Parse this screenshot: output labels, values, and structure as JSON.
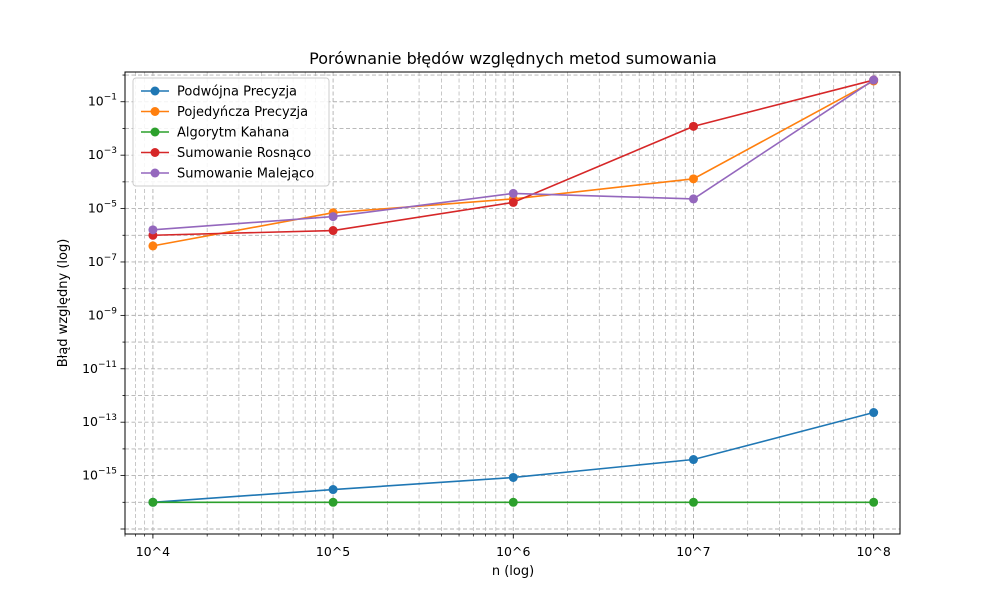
{
  "chart_data": {
    "type": "line",
    "title": "Porównanie błędów względnych metod sumowania",
    "xlabel": "n (log)",
    "ylabel": "Błąd względny (log)",
    "xscale": "log",
    "yscale": "log",
    "xlim": [
      7000,
      140000000
    ],
    "ylim": [
      6.5e-18,
      1.3
    ],
    "grid": true,
    "legend_position": "upper-left",
    "x": [
      10000,
      100000,
      1000000,
      10000000,
      100000000
    ],
    "x_tick_labels": [
      "10^4",
      "10^5",
      "10^6",
      "10^7",
      "10^8"
    ],
    "y_tick_labels": [
      {
        "base": "10",
        "exp": "−15",
        "value": 1e-15
      },
      {
        "base": "10",
        "exp": "−13",
        "value": 1e-13
      },
      {
        "base": "10",
        "exp": "−11",
        "value": 1e-11
      },
      {
        "base": "10",
        "exp": "−9",
        "value": 1e-09
      },
      {
        "base": "10",
        "exp": "−7",
        "value": 1e-07
      },
      {
        "base": "10",
        "exp": "−5",
        "value": 1e-05
      },
      {
        "base": "10",
        "exp": "−3",
        "value": 0.001
      },
      {
        "base": "10",
        "exp": "−1",
        "value": 0.1
      }
    ],
    "series": [
      {
        "name": "Podwójna Precyzja",
        "color": "#1f77b4",
        "values": [
          1e-16,
          3e-16,
          8.5e-16,
          4e-15,
          2.3e-13
        ]
      },
      {
        "name": "Pojedyńcza Precyzja",
        "color": "#ff7f0e",
        "values": [
          4e-07,
          7e-06,
          2.3e-05,
          0.00013,
          0.6
        ]
      },
      {
        "name": "Algorytm Kahana",
        "color": "#2ca02c",
        "values": [
          1e-16,
          1e-16,
          1e-16,
          1e-16,
          1e-16
        ]
      },
      {
        "name": "Sumowanie Rosnąco",
        "color": "#d62728",
        "values": [
          1e-06,
          1.5e-06,
          1.7e-05,
          0.012,
          0.65
        ]
      },
      {
        "name": "Sumowanie Malejąco",
        "color": "#9467bd",
        "values": [
          1.6e-06,
          5e-06,
          3.7e-05,
          2.3e-05,
          0.65
        ]
      }
    ]
  }
}
